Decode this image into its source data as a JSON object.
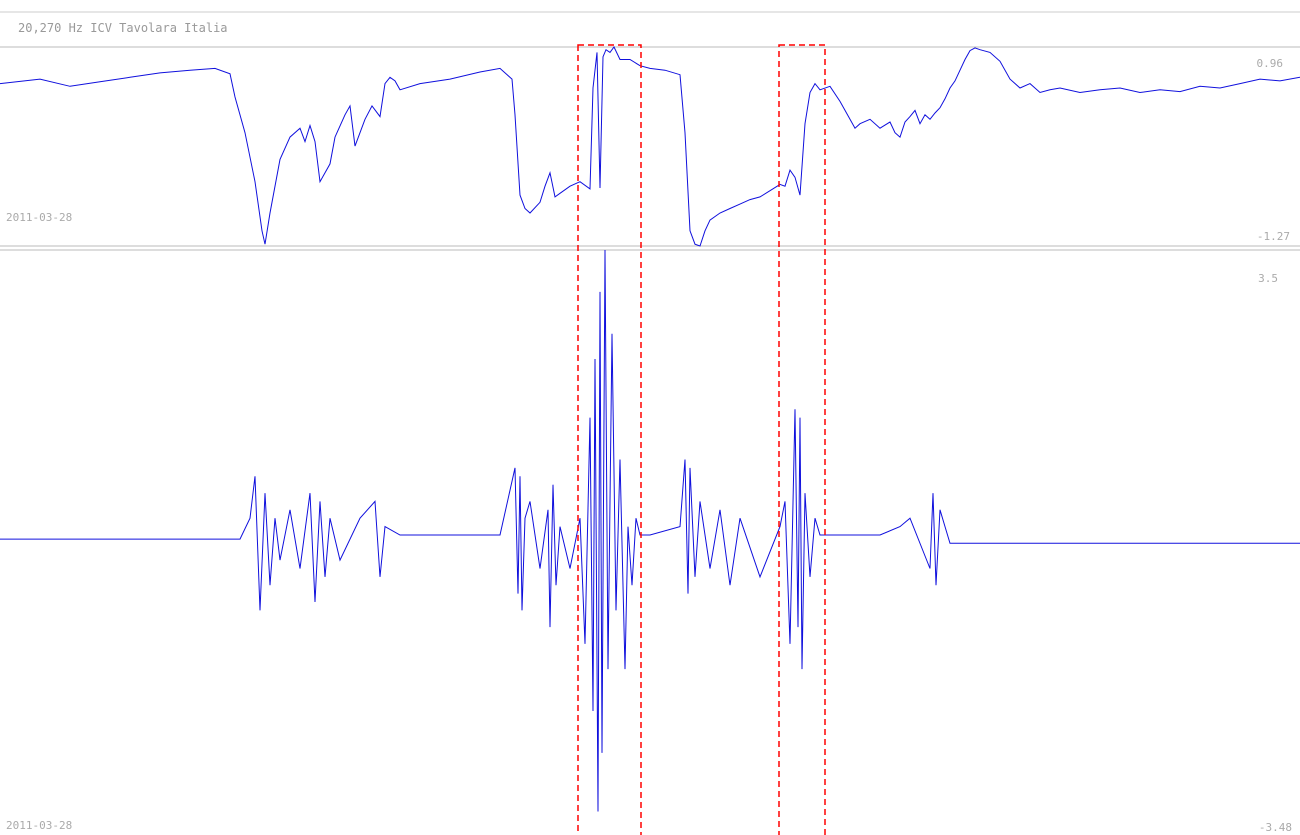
{
  "chart_data": [
    {
      "type": "line",
      "title": "20,270 Hz ICV Tavolara Italia",
      "date_label": "2011-03-28",
      "ymax_label": "0.96",
      "ymin_label": "-1.27",
      "ylim": [
        -1.27,
        0.96
      ],
      "xlim": [
        0,
        1300
      ],
      "series": [
        {
          "color": "#1010dd",
          "x": [
            0,
            40,
            70,
            100,
            130,
            160,
            190,
            215,
            230,
            235,
            245,
            255,
            262,
            265,
            270,
            280,
            290,
            300,
            305,
            310,
            315,
            320,
            330,
            335,
            345,
            350,
            355,
            360,
            365,
            372,
            380,
            385,
            390,
            395,
            400,
            420,
            450,
            480,
            500,
            512,
            515,
            520,
            525,
            530,
            540,
            545,
            550,
            555,
            560,
            570,
            580,
            590,
            593,
            597,
            600,
            603,
            606,
            610,
            614,
            620,
            630,
            640,
            650,
            665,
            680,
            685,
            690,
            695,
            700,
            705,
            710,
            720,
            730,
            740,
            750,
            760,
            770,
            780,
            785,
            790,
            795,
            800,
            805,
            810,
            815,
            820,
            830,
            840,
            850,
            855,
            860,
            870,
            880,
            890,
            895,
            900,
            905,
            910,
            915,
            920,
            925,
            930,
            935,
            940,
            945,
            950,
            955,
            960,
            965,
            970,
            975,
            980,
            990,
            1000,
            1010,
            1020,
            1030,
            1040,
            1050,
            1060,
            1080,
            1100,
            1120,
            1140,
            1160,
            1180,
            1200,
            1220,
            1240,
            1260,
            1280,
            1300
          ],
          "y": [
            0.55,
            0.6,
            0.52,
            0.57,
            0.62,
            0.67,
            0.7,
            0.72,
            0.66,
            0.4,
            0.0,
            -0.55,
            -1.1,
            -1.25,
            -0.9,
            -0.3,
            -0.05,
            0.05,
            -0.1,
            0.08,
            -0.1,
            -0.55,
            -0.35,
            -0.05,
            0.2,
            0.3,
            -0.15,
            0.0,
            0.15,
            0.3,
            0.18,
            0.55,
            0.62,
            0.58,
            0.48,
            0.55,
            0.6,
            0.68,
            0.72,
            0.6,
            0.2,
            -0.7,
            -0.85,
            -0.9,
            -0.78,
            -0.6,
            -0.45,
            -0.72,
            -0.68,
            -0.6,
            -0.55,
            -0.63,
            0.5,
            0.9,
            -0.62,
            0.85,
            0.93,
            0.9,
            0.96,
            0.82,
            0.82,
            0.75,
            0.72,
            0.7,
            0.65,
            0.0,
            -1.1,
            -1.25,
            -1.27,
            -1.1,
            -0.98,
            -0.9,
            -0.85,
            -0.8,
            -0.75,
            -0.72,
            -0.65,
            -0.58,
            -0.6,
            -0.42,
            -0.5,
            -0.7,
            0.1,
            0.45,
            0.55,
            0.48,
            0.52,
            0.35,
            0.15,
            0.05,
            0.1,
            0.15,
            0.05,
            0.12,
            0.0,
            -0.05,
            0.12,
            0.18,
            0.25,
            0.1,
            0.2,
            0.15,
            0.22,
            0.28,
            0.38,
            0.5,
            0.58,
            0.7,
            0.82,
            0.92,
            0.95,
            0.93,
            0.9,
            0.8,
            0.6,
            0.5,
            0.55,
            0.45,
            0.48,
            0.5,
            0.45,
            0.48,
            0.5,
            0.45,
            0.48,
            0.46,
            0.52,
            0.5,
            0.55,
            0.6,
            0.58,
            0.62
          ]
        }
      ],
      "highlight_boxes": [
        {
          "x_start": 578,
          "x_end": 641
        },
        {
          "x_start": 779,
          "x_end": 825
        }
      ]
    },
    {
      "type": "line",
      "date_label": "2011-03-28",
      "ymax_label": "3.5",
      "ymin_label": "-3.48",
      "ylim": [
        -3.48,
        3.5
      ],
      "xlim": [
        0,
        1300
      ],
      "series": [
        {
          "color": "#1010dd",
          "x": [
            0,
            240,
            250,
            255,
            260,
            265,
            270,
            275,
            280,
            290,
            300,
            310,
            315,
            320,
            325,
            330,
            340,
            360,
            375,
            380,
            385,
            400,
            450,
            500,
            515,
            518,
            520,
            522,
            525,
            530,
            540,
            548,
            550,
            553,
            556,
            560,
            570,
            580,
            585,
            590,
            593,
            595,
            598,
            600,
            602,
            605,
            608,
            612,
            616,
            620,
            625,
            628,
            632,
            636,
            640,
            650,
            680,
            685,
            688,
            690,
            695,
            700,
            710,
            720,
            730,
            740,
            760,
            780,
            785,
            790,
            795,
            798,
            800,
            802,
            805,
            810,
            815,
            820,
            830,
            880,
            900,
            910,
            930,
            933,
            936,
            940,
            945,
            950,
            1000,
            1100,
            1200,
            1300
          ],
          "y": [
            0.05,
            0.05,
            0.3,
            0.8,
            -0.8,
            0.6,
            -0.5,
            0.3,
            -0.2,
            0.4,
            -0.3,
            0.6,
            -0.7,
            0.5,
            -0.4,
            0.3,
            -0.2,
            0.3,
            0.5,
            -0.4,
            0.2,
            0.1,
            0.1,
            0.1,
            0.9,
            -0.6,
            0.8,
            -0.8,
            0.3,
            0.5,
            -0.3,
            0.4,
            -1.0,
            0.7,
            -0.5,
            0.2,
            -0.3,
            0.3,
            -1.2,
            1.5,
            -2.0,
            2.2,
            -3.2,
            3.0,
            -2.5,
            3.5,
            -1.5,
            2.5,
            -0.8,
            1.0,
            -1.5,
            0.2,
            -0.5,
            0.3,
            0.1,
            0.1,
            0.2,
            1.0,
            -0.6,
            0.9,
            -0.4,
            0.5,
            -0.3,
            0.4,
            -0.5,
            0.3,
            -0.4,
            0.2,
            0.5,
            -1.2,
            1.6,
            -1.0,
            1.5,
            -1.5,
            0.6,
            -0.4,
            0.3,
            0.1,
            0.1,
            0.1,
            0.2,
            0.3,
            -0.3,
            0.6,
            -0.5,
            0.4,
            0.2,
            0.0,
            0.0,
            0.0,
            0.0,
            0.0
          ]
        }
      ],
      "highlight_boxes": [
        {
          "x_start": 578,
          "x_end": 641
        },
        {
          "x_start": 779,
          "x_end": 825
        }
      ]
    }
  ],
  "styles": {
    "line_color": "#1010dd",
    "highlight_color": "#ff0000",
    "axis_color": "#bbbbbb"
  }
}
